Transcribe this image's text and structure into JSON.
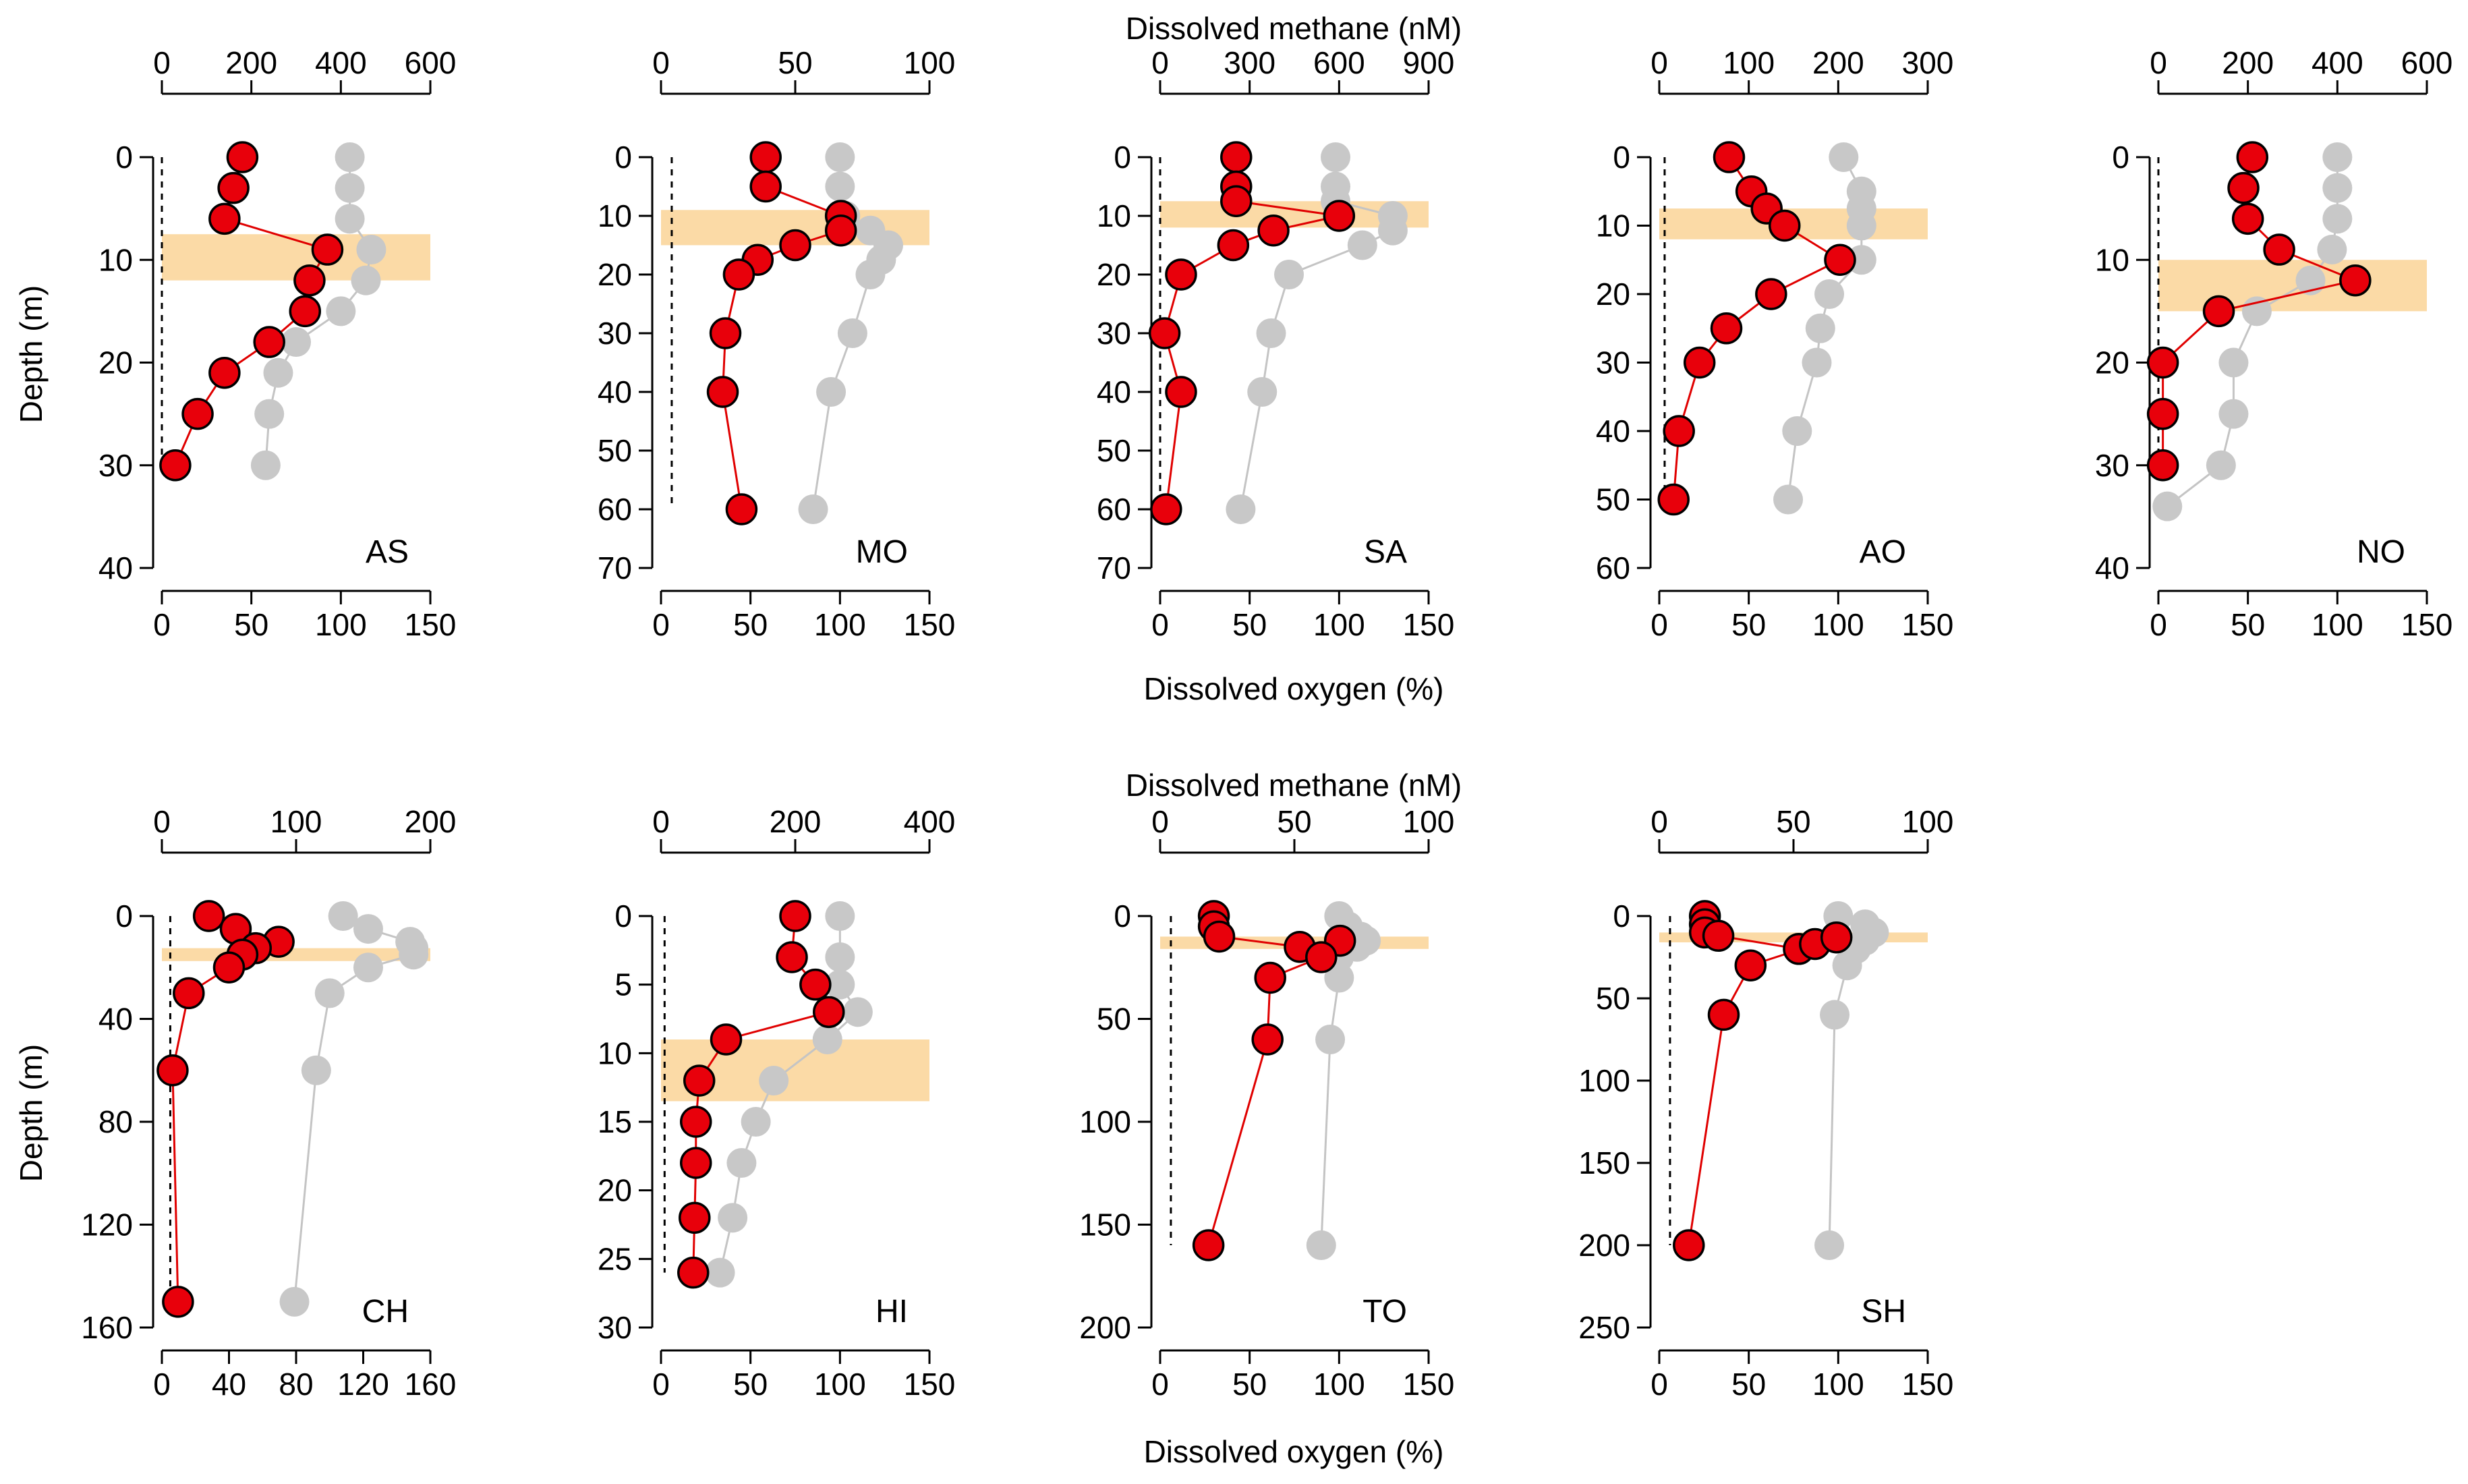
{
  "figure": {
    "row_titles": {
      "top_axis": "Dissolved methane (nM)",
      "bottom_axis": "Dissolved oxygen (%)",
      "y_axis": "Depth (m)"
    },
    "colors": {
      "methane": "#e8000b",
      "methane_line": "#e00000",
      "oxygen": "#c8c8c8",
      "oxygen_line": "#c4c4c4",
      "layer": "#fbdaa6"
    }
  },
  "chart_data": [
    {
      "type": "scatter",
      "label": "AS",
      "ylabel": "Depth (m)",
      "ylim": [
        40,
        0
      ],
      "yticks": [
        0,
        10,
        20,
        30,
        40
      ],
      "methane_ticks": [
        0,
        200,
        400,
        600
      ],
      "methane_range": [
        0,
        600
      ],
      "oxygen_ticks": [
        0,
        50,
        100,
        150
      ],
      "oxygen_range": [
        0,
        150
      ],
      "layer": [
        7.5,
        12
      ],
      "ref_line": {
        "x": 0,
        "to": 30
      },
      "series": [
        {
          "depth": [
            0,
            3,
            6,
            9,
            12,
            15,
            18,
            21,
            25,
            30
          ],
          "methane": [
            180,
            160,
            140,
            370,
            330,
            320,
            240,
            140,
            80,
            30
          ]
        },
        {
          "depth": [
            0,
            3,
            6,
            9,
            12,
            15,
            18,
            21,
            25,
            30
          ],
          "oxygen": [
            105,
            105,
            105,
            117,
            114,
            100,
            75,
            65,
            60,
            58
          ]
        }
      ]
    },
    {
      "type": "scatter",
      "label": "MO",
      "ylim": [
        70,
        0
      ],
      "yticks": [
        0,
        10,
        20,
        30,
        40,
        50,
        60,
        70
      ],
      "methane_ticks": [
        0,
        50,
        100
      ],
      "methane_range": [
        0,
        100
      ],
      "oxygen_ticks": [
        0,
        50,
        100,
        150
      ],
      "oxygen_range": [
        0,
        150
      ],
      "layer": [
        9,
        15
      ],
      "ref_line": {
        "x": 6,
        "to": 60
      },
      "series": [
        {
          "depth": [
            0,
            5,
            10,
            12.5,
            15,
            17.5,
            20,
            30,
            40,
            60
          ],
          "methane": [
            39,
            39,
            67,
            67,
            50,
            36,
            29,
            24,
            23,
            30
          ]
        },
        {
          "depth": [
            0,
            5,
            10,
            12.5,
            15,
            17.5,
            20,
            30,
            40,
            60
          ],
          "oxygen": [
            100,
            100,
            103,
            117,
            127,
            123,
            117,
            107,
            95,
            85
          ]
        }
      ]
    },
    {
      "type": "scatter",
      "label": "SA",
      "ylim": [
        70,
        0
      ],
      "yticks": [
        0,
        10,
        20,
        30,
        40,
        50,
        60,
        70
      ],
      "methane_ticks": [
        0,
        300,
        600,
        900
      ],
      "methane_range": [
        0,
        900
      ],
      "oxygen_ticks": [
        0,
        50,
        100,
        150
      ],
      "oxygen_range": [
        0,
        150
      ],
      "layer": [
        7.5,
        12
      ],
      "ref_line": {
        "x": 0,
        "to": 60
      },
      "series": [
        {
          "depth": [
            0,
            5,
            7.5,
            10,
            12.5,
            15,
            20,
            30,
            40,
            60
          ],
          "methane": [
            255,
            255,
            255,
            600,
            380,
            245,
            70,
            15,
            70,
            20
          ]
        },
        {
          "depth": [
            0,
            5,
            7.5,
            10,
            12.5,
            15,
            20,
            30,
            40,
            60
          ],
          "oxygen": [
            98,
            98,
            98,
            130,
            130,
            113,
            72,
            62,
            57,
            45
          ]
        }
      ]
    },
    {
      "type": "scatter",
      "label": "AO",
      "ylim": [
        60,
        0
      ],
      "yticks": [
        0,
        10,
        20,
        30,
        40,
        50,
        60
      ],
      "methane_ticks": [
        0,
        100,
        200,
        300
      ],
      "methane_range": [
        0,
        300
      ],
      "oxygen_ticks": [
        0,
        50,
        100,
        150
      ],
      "oxygen_range": [
        0,
        150
      ],
      "layer": [
        7.5,
        12
      ],
      "ref_line": {
        "x": 3,
        "to": 50
      },
      "series": [
        {
          "depth": [
            0,
            5,
            7.5,
            10,
            15,
            20,
            25,
            30,
            40,
            50
          ],
          "methane": [
            78,
            103,
            120,
            140,
            202,
            125,
            75,
            45,
            22,
            16
          ]
        },
        {
          "depth": [
            0,
            5,
            7.5,
            10,
            15,
            20,
            25,
            30,
            40,
            50
          ],
          "oxygen": [
            103,
            113,
            113,
            113,
            113,
            95,
            90,
            88,
            77,
            72
          ]
        }
      ]
    },
    {
      "type": "scatter",
      "label": "NO",
      "ylim": [
        40,
        0
      ],
      "yticks": [
        0,
        10,
        20,
        30,
        40
      ],
      "methane_ticks": [
        0,
        200,
        400,
        600
      ],
      "methane_range": [
        0,
        600
      ],
      "oxygen_ticks": [
        0,
        50,
        100,
        150
      ],
      "oxygen_range": [
        0,
        150
      ],
      "layer": [
        10,
        15
      ],
      "ref_line": {
        "x": 0,
        "to": 30
      },
      "series": [
        {
          "depth": [
            0,
            3,
            6,
            9,
            12,
            15,
            20,
            25,
            30
          ],
          "methane": [
            210,
            190,
            200,
            270,
            440,
            135,
            10,
            10,
            10
          ]
        },
        {
          "depth": [
            0,
            3,
            6,
            9,
            12,
            15,
            20,
            25,
            30,
            34
          ],
          "oxygen": [
            100,
            100,
            100,
            97,
            85,
            55,
            42,
            42,
            35,
            5
          ]
        }
      ]
    },
    {
      "type": "scatter",
      "label": "CH",
      "ylim": [
        160,
        0
      ],
      "yticks": [
        0,
        40,
        80,
        120,
        160
      ],
      "methane_ticks": [
        0,
        100,
        200
      ],
      "methane_range": [
        0,
        200
      ],
      "oxygen_ticks": [
        0,
        40,
        80,
        120,
        160
      ],
      "oxygen_range": [
        0,
        160
      ],
      "layer": [
        12.5,
        17.5
      ],
      "ref_line": {
        "x": 5,
        "to": 145
      },
      "series": [
        {
          "depth": [
            0,
            5,
            10,
            12.5,
            15,
            20,
            30,
            60,
            150
          ],
          "methane": [
            35,
            55,
            87,
            70,
            60,
            50,
            20,
            8,
            12
          ]
        },
        {
          "depth": [
            0,
            5,
            10,
            12.5,
            15,
            20,
            30,
            60,
            150
          ],
          "oxygen": [
            108,
            123,
            148,
            150,
            150,
            123,
            100,
            92,
            79
          ]
        }
      ]
    },
    {
      "type": "scatter",
      "label": "HI",
      "ylim": [
        30,
        0
      ],
      "yticks": [
        0,
        5,
        10,
        15,
        20,
        25,
        30
      ],
      "methane_ticks": [
        0,
        200,
        400
      ],
      "methane_range": [
        0,
        400
      ],
      "oxygen_ticks": [
        0,
        50,
        100,
        150
      ],
      "oxygen_range": [
        0,
        150
      ],
      "layer": [
        9,
        13.5
      ],
      "ref_line": {
        "x": 2,
        "to": 26
      },
      "series": [
        {
          "depth": [
            0,
            3,
            5,
            7,
            9,
            12,
            15,
            18,
            22,
            26
          ],
          "methane": [
            200,
            195,
            230,
            250,
            97,
            57,
            52,
            52,
            50,
            48
          ]
        },
        {
          "depth": [
            0,
            3,
            5,
            7,
            9,
            12,
            15,
            18,
            22,
            26
          ],
          "oxygen": [
            100,
            100,
            100,
            110,
            93,
            63,
            53,
            45,
            40,
            33
          ]
        }
      ]
    },
    {
      "type": "scatter",
      "label": "TO",
      "ylim": [
        200,
        0
      ],
      "yticks": [
        0,
        50,
        100,
        150,
        200
      ],
      "methane_ticks": [
        0,
        50,
        100
      ],
      "methane_range": [
        0,
        100
      ],
      "oxygen_ticks": [
        0,
        50,
        100,
        150
      ],
      "oxygen_range": [
        0,
        150
      ],
      "layer": [
        10,
        16
      ],
      "ref_line": {
        "x": 6,
        "to": 160
      },
      "series": [
        {
          "depth": [
            0,
            5,
            10,
            15,
            12,
            20,
            30,
            60,
            160
          ],
          "methane": [
            20,
            20,
            22,
            52,
            67,
            60,
            41,
            40,
            18
          ]
        },
        {
          "depth": [
            0,
            5,
            10,
            12,
            15,
            20,
            30,
            60,
            160
          ],
          "oxygen": [
            100,
            105,
            112,
            115,
            110,
            100,
            100,
            95,
            90
          ]
        }
      ]
    },
    {
      "type": "scatter",
      "label": "SH",
      "ylim": [
        250,
        0
      ],
      "yticks": [
        0,
        50,
        100,
        150,
        200,
        250
      ],
      "methane_ticks": [
        0,
        50,
        100
      ],
      "methane_range": [
        0,
        100
      ],
      "oxygen_ticks": [
        0,
        50,
        100,
        150
      ],
      "oxygen_range": [
        0,
        150
      ],
      "layer": [
        10,
        16
      ],
      "ref_line": {
        "x": 6,
        "to": 200
      },
      "series": [
        {
          "depth": [
            0,
            5,
            10,
            12,
            20,
            17,
            13,
            30,
            60,
            200
          ],
          "methane": [
            17,
            17,
            17,
            22,
            52,
            58,
            66,
            34,
            24,
            11
          ]
        },
        {
          "depth": [
            0,
            5,
            10,
            15,
            20,
            30,
            60,
            200
          ],
          "oxygen": [
            100,
            115,
            120,
            115,
            110,
            105,
            98,
            95
          ]
        }
      ]
    }
  ]
}
